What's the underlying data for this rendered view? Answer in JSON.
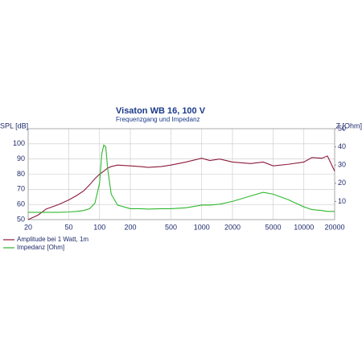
{
  "chart_data": {
    "type": "line",
    "title": "Visaton WB 16, 100 V",
    "subtitle": "Frequenzgang und Impedanz",
    "y_label": "SPL [dB]",
    "y2_label": "Z [Ohm]",
    "xscale": "log",
    "grid": true,
    "x": [
      20,
      25,
      30,
      40,
      50,
      60,
      70,
      80,
      90,
      100,
      105,
      110,
      115,
      120,
      130,
      150,
      200,
      250,
      300,
      400,
      500,
      700,
      1000,
      1200,
      1500,
      2000,
      3000,
      4000,
      5000,
      7000,
      10000,
      12000,
      15000,
      17000,
      20000
    ],
    "series": [
      {
        "name": "Amplitude bei 1 Watt, 1m",
        "color": "#8b1a3a",
        "values": [
          50,
          53,
          57,
          60,
          63,
          66,
          69,
          73,
          77,
          80,
          81,
          82,
          83,
          84,
          85,
          86,
          85.5,
          85,
          84.5,
          85,
          86,
          88,
          90.5,
          89,
          90,
          88,
          87,
          88,
          85.5,
          86.5,
          88,
          91,
          90.5,
          92,
          82
        ]
      },
      {
        "name": "Impedanz [Ohm]",
        "color": "#2db82d",
        "axis": "y2",
        "values": [
          4,
          4,
          4,
          4,
          4.2,
          4.5,
          5,
          6,
          9,
          20,
          36,
          41,
          40,
          28,
          14,
          8,
          6,
          6,
          5.8,
          6,
          6,
          6.5,
          8,
          8,
          8.5,
          10,
          13,
          15,
          14,
          11,
          7,
          5.5,
          5,
          4.5,
          4.5
        ]
      }
    ],
    "xlim": [
      20,
      20000
    ],
    "xticks": [
      20,
      50,
      100,
      200,
      500,
      1000,
      2000,
      5000,
      10000,
      20000
    ],
    "ylim": [
      50,
      110
    ],
    "yticks": [
      50,
      60,
      70,
      80,
      90,
      100
    ],
    "y2lim": [
      0,
      50
    ],
    "y2ticks": [
      10,
      20,
      30,
      40,
      50
    ]
  }
}
